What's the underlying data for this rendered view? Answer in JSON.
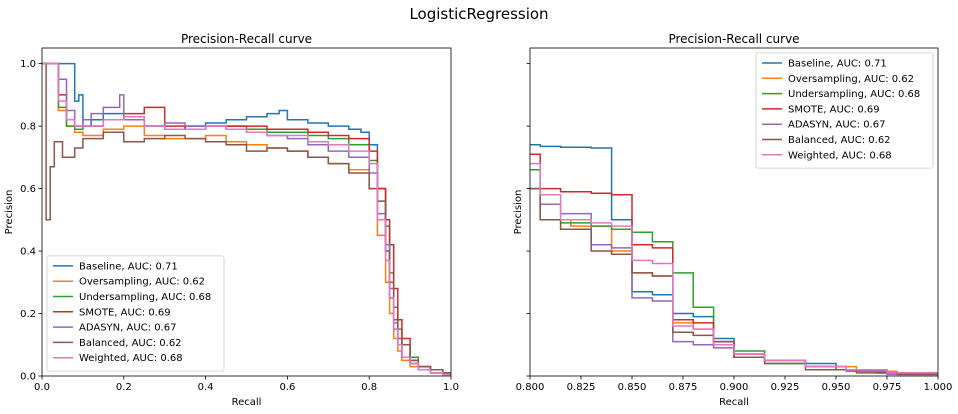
{
  "figure_title": "LogisticRegression",
  "chart_data": [
    {
      "type": "line",
      "step": true,
      "title": "Precision-Recall curve",
      "xlabel": "Recall",
      "ylabel": "Precision",
      "xlim": [
        0.0,
        1.0
      ],
      "ylim": [
        0.0,
        1.05
      ],
      "xticks": [
        0.0,
        0.2,
        0.4,
        0.6,
        0.8,
        1.0
      ],
      "xtick_labels": [
        "0.0",
        "0.2",
        "0.4",
        "0.6",
        "0.8",
        "1.0"
      ],
      "yticks": [
        0.0,
        0.2,
        0.4,
        0.6,
        0.8,
        1.0
      ],
      "ytick_labels": [
        "0.0",
        "0.2",
        "0.4",
        "0.6",
        "0.8",
        "1.0"
      ],
      "grid": false,
      "legend_position": "lower-left",
      "series": [
        {
          "name": "Baseline, AUC: 0.71",
          "color": "#1f77b4",
          "x": [
            0.0,
            0.02,
            0.04,
            0.06,
            0.08,
            0.09,
            0.1,
            0.12,
            0.15,
            0.2,
            0.25,
            0.3,
            0.35,
            0.4,
            0.45,
            0.5,
            0.55,
            0.58,
            0.6,
            0.65,
            0.7,
            0.75,
            0.78,
            0.8,
            0.82,
            0.84,
            0.85,
            0.86,
            0.87,
            0.88,
            0.9,
            0.92,
            0.95,
            0.98,
            1.0
          ],
          "y": [
            1.0,
            1.0,
            1.0,
            1.0,
            0.88,
            0.9,
            0.8,
            0.82,
            0.84,
            0.83,
            0.8,
            0.79,
            0.8,
            0.81,
            0.82,
            0.83,
            0.84,
            0.85,
            0.82,
            0.81,
            0.8,
            0.79,
            0.78,
            0.74,
            0.6,
            0.42,
            0.25,
            0.15,
            0.1,
            0.06,
            0.04,
            0.02,
            0.01,
            0.005,
            0.0
          ]
        },
        {
          "name": "Oversampling, AUC: 0.62",
          "color": "#ff7f0e",
          "x": [
            0.0,
            0.02,
            0.04,
            0.06,
            0.08,
            0.1,
            0.15,
            0.2,
            0.25,
            0.3,
            0.35,
            0.4,
            0.45,
            0.5,
            0.55,
            0.6,
            0.65,
            0.7,
            0.75,
            0.8,
            0.82,
            0.84,
            0.85,
            0.86,
            0.87,
            0.88,
            0.9,
            0.92,
            0.95,
            0.98,
            1.0
          ],
          "y": [
            1.0,
            1.0,
            0.85,
            0.8,
            0.78,
            0.77,
            0.79,
            0.8,
            0.77,
            0.76,
            0.76,
            0.77,
            0.75,
            0.74,
            0.73,
            0.72,
            0.7,
            0.68,
            0.66,
            0.6,
            0.45,
            0.3,
            0.2,
            0.12,
            0.08,
            0.05,
            0.03,
            0.02,
            0.01,
            0.005,
            0.0
          ]
        },
        {
          "name": "Undersampling, AUC: 0.68",
          "color": "#2ca02c",
          "x": [
            0.0,
            0.02,
            0.04,
            0.06,
            0.08,
            0.1,
            0.15,
            0.2,
            0.25,
            0.3,
            0.35,
            0.4,
            0.45,
            0.5,
            0.55,
            0.6,
            0.65,
            0.7,
            0.75,
            0.8,
            0.82,
            0.84,
            0.85,
            0.86,
            0.87,
            0.88,
            0.9,
            0.92,
            0.95,
            0.98,
            1.0
          ],
          "y": [
            1.0,
            1.0,
            0.86,
            0.8,
            0.79,
            0.8,
            0.82,
            0.83,
            0.8,
            0.79,
            0.8,
            0.8,
            0.8,
            0.79,
            0.78,
            0.78,
            0.77,
            0.76,
            0.74,
            0.69,
            0.6,
            0.48,
            0.33,
            0.22,
            0.15,
            0.1,
            0.06,
            0.03,
            0.02,
            0.01,
            0.0
          ]
        },
        {
          "name": "SMOTE, AUC: 0.69",
          "color": "#d62728",
          "x": [
            0.0,
            0.02,
            0.04,
            0.06,
            0.08,
            0.1,
            0.15,
            0.2,
            0.25,
            0.3,
            0.35,
            0.4,
            0.45,
            0.5,
            0.55,
            0.6,
            0.65,
            0.7,
            0.75,
            0.8,
            0.82,
            0.84,
            0.85,
            0.86,
            0.87,
            0.88,
            0.9,
            0.92,
            0.95,
            0.98,
            1.0
          ],
          "y": [
            1.0,
            1.0,
            0.9,
            0.82,
            0.8,
            0.8,
            0.82,
            0.84,
            0.86,
            0.8,
            0.79,
            0.8,
            0.8,
            0.8,
            0.79,
            0.79,
            0.78,
            0.77,
            0.76,
            0.72,
            0.6,
            0.5,
            0.42,
            0.28,
            0.18,
            0.12,
            0.05,
            0.03,
            0.02,
            0.01,
            0.0
          ]
        },
        {
          "name": "ADASYN, AUC: 0.67",
          "color": "#9467bd",
          "x": [
            0.0,
            0.02,
            0.04,
            0.06,
            0.08,
            0.1,
            0.12,
            0.15,
            0.19,
            0.2,
            0.25,
            0.3,
            0.35,
            0.4,
            0.45,
            0.5,
            0.55,
            0.6,
            0.65,
            0.7,
            0.75,
            0.8,
            0.82,
            0.84,
            0.85,
            0.86,
            0.87,
            0.88,
            0.9,
            0.92,
            0.95,
            0.98,
            1.0
          ],
          "y": [
            1.0,
            1.0,
            0.95,
            0.85,
            0.8,
            0.82,
            0.84,
            0.86,
            0.9,
            0.82,
            0.8,
            0.81,
            0.8,
            0.8,
            0.79,
            0.78,
            0.77,
            0.76,
            0.74,
            0.72,
            0.7,
            0.65,
            0.52,
            0.42,
            0.28,
            0.17,
            0.1,
            0.06,
            0.04,
            0.02,
            0.01,
            0.005,
            0.0
          ]
        },
        {
          "name": "Balanced, AUC: 0.62",
          "color": "#8c564b",
          "x": [
            0.0,
            0.01,
            0.02,
            0.03,
            0.05,
            0.08,
            0.1,
            0.15,
            0.2,
            0.25,
            0.3,
            0.35,
            0.4,
            0.45,
            0.5,
            0.55,
            0.6,
            0.65,
            0.7,
            0.75,
            0.8,
            0.82,
            0.84,
            0.85,
            0.86,
            0.87,
            0.88,
            0.9,
            0.92,
            0.95,
            0.98,
            1.0
          ],
          "y": [
            1.0,
            0.5,
            0.67,
            0.75,
            0.7,
            0.73,
            0.76,
            0.78,
            0.75,
            0.76,
            0.77,
            0.76,
            0.75,
            0.74,
            0.72,
            0.73,
            0.72,
            0.7,
            0.68,
            0.65,
            0.6,
            0.56,
            0.4,
            0.3,
            0.18,
            0.12,
            0.1,
            0.05,
            0.03,
            0.02,
            0.01,
            0.0
          ]
        },
        {
          "name": "Weighted, AUC: 0.68",
          "color": "#e377c2",
          "x": [
            0.0,
            0.02,
            0.04,
            0.06,
            0.08,
            0.1,
            0.15,
            0.2,
            0.25,
            0.3,
            0.35,
            0.4,
            0.45,
            0.5,
            0.55,
            0.6,
            0.65,
            0.7,
            0.75,
            0.8,
            0.82,
            0.84,
            0.85,
            0.86,
            0.87,
            0.88,
            0.9,
            0.92,
            0.95,
            0.98,
            1.0
          ],
          "y": [
            1.0,
            1.0,
            0.88,
            0.82,
            0.8,
            0.8,
            0.82,
            0.83,
            0.8,
            0.79,
            0.79,
            0.8,
            0.79,
            0.78,
            0.77,
            0.77,
            0.75,
            0.74,
            0.72,
            0.68,
            0.5,
            0.37,
            0.25,
            0.15,
            0.1,
            0.06,
            0.04,
            0.02,
            0.01,
            0.005,
            0.0
          ]
        }
      ]
    },
    {
      "type": "line",
      "step": true,
      "title": "Precision-Recall curve",
      "xlabel": "Recall",
      "ylabel": "Precision",
      "xlim": [
        0.8,
        1.0
      ],
      "ylim": [
        0.0,
        1.05
      ],
      "xticks": [
        0.8,
        0.825,
        0.85,
        0.875,
        0.9,
        0.925,
        0.95,
        0.975,
        1.0
      ],
      "xtick_labels": [
        "0.800",
        "0.825",
        "0.850",
        "0.875",
        "0.900",
        "0.925",
        "0.950",
        "0.975",
        "1.000"
      ],
      "yticks": [
        0.0,
        0.2,
        0.4,
        0.6,
        0.8,
        1.0
      ],
      "ytick_labels": [],
      "sharey": true,
      "grid": false,
      "legend_position": "upper-right",
      "series": [
        {
          "name": "Baseline, AUC: 0.71",
          "color": "#1f77b4",
          "x": [
            0.8,
            0.805,
            0.815,
            0.83,
            0.84,
            0.85,
            0.86,
            0.87,
            0.88,
            0.89,
            0.9,
            0.915,
            0.935,
            0.95,
            0.97,
            1.0
          ],
          "y": [
            0.74,
            0.735,
            0.732,
            0.73,
            0.5,
            0.27,
            0.26,
            0.2,
            0.19,
            0.12,
            0.06,
            0.05,
            0.04,
            0.02,
            0.01,
            0.0
          ]
        },
        {
          "name": "Oversampling, AUC: 0.62",
          "color": "#ff7f0e",
          "x": [
            0.8,
            0.805,
            0.82,
            0.84,
            0.85,
            0.86,
            0.87,
            0.88,
            0.89,
            0.9,
            0.915,
            0.935,
            0.96,
            0.98,
            1.0
          ],
          "y": [
            0.6,
            0.5,
            0.48,
            0.4,
            0.33,
            0.32,
            0.17,
            0.15,
            0.1,
            0.07,
            0.05,
            0.03,
            0.015,
            0.005,
            0.0
          ]
        },
        {
          "name": "Undersampling, AUC: 0.68",
          "color": "#2ca02c",
          "x": [
            0.8,
            0.805,
            0.815,
            0.83,
            0.84,
            0.85,
            0.86,
            0.87,
            0.88,
            0.89,
            0.9,
            0.915,
            0.935,
            0.95,
            0.97,
            1.0
          ],
          "y": [
            0.66,
            0.5,
            0.49,
            0.48,
            0.47,
            0.46,
            0.43,
            0.33,
            0.22,
            0.1,
            0.08,
            0.04,
            0.03,
            0.02,
            0.01,
            0.0
          ]
        },
        {
          "name": "SMOTE, AUC: 0.69",
          "color": "#d62728",
          "x": [
            0.8,
            0.805,
            0.815,
            0.83,
            0.84,
            0.85,
            0.86,
            0.87,
            0.88,
            0.89,
            0.9,
            0.915,
            0.935,
            0.955,
            0.975,
            1.0
          ],
          "y": [
            0.71,
            0.6,
            0.59,
            0.585,
            0.58,
            0.42,
            0.41,
            0.18,
            0.17,
            0.11,
            0.07,
            0.05,
            0.03,
            0.02,
            0.01,
            0.0
          ]
        },
        {
          "name": "ADASYN, AUC: 0.67",
          "color": "#9467bd",
          "x": [
            0.8,
            0.805,
            0.815,
            0.83,
            0.84,
            0.85,
            0.86,
            0.87,
            0.88,
            0.89,
            0.9,
            0.915,
            0.935,
            0.955,
            0.975,
            1.0
          ],
          "y": [
            0.6,
            0.55,
            0.52,
            0.42,
            0.41,
            0.25,
            0.24,
            0.11,
            0.1,
            0.09,
            0.06,
            0.05,
            0.03,
            0.015,
            0.005,
            0.0
          ]
        },
        {
          "name": "Balanced, AUC: 0.62",
          "color": "#8c564b",
          "x": [
            0.8,
            0.805,
            0.815,
            0.83,
            0.84,
            0.85,
            0.86,
            0.87,
            0.88,
            0.89,
            0.9,
            0.915,
            0.935,
            0.96,
            0.98,
            1.0
          ],
          "y": [
            0.6,
            0.5,
            0.47,
            0.4,
            0.39,
            0.33,
            0.32,
            0.14,
            0.13,
            0.11,
            0.06,
            0.04,
            0.02,
            0.01,
            0.005,
            0.0
          ]
        },
        {
          "name": "Weighted, AUC: 0.68",
          "color": "#e377c2",
          "x": [
            0.8,
            0.805,
            0.815,
            0.83,
            0.84,
            0.85,
            0.86,
            0.87,
            0.88,
            0.89,
            0.9,
            0.915,
            0.935,
            0.955,
            0.975,
            1.0
          ],
          "y": [
            0.68,
            0.58,
            0.5,
            0.49,
            0.48,
            0.37,
            0.36,
            0.16,
            0.15,
            0.1,
            0.07,
            0.05,
            0.03,
            0.02,
            0.01,
            0.0
          ]
        }
      ]
    }
  ]
}
